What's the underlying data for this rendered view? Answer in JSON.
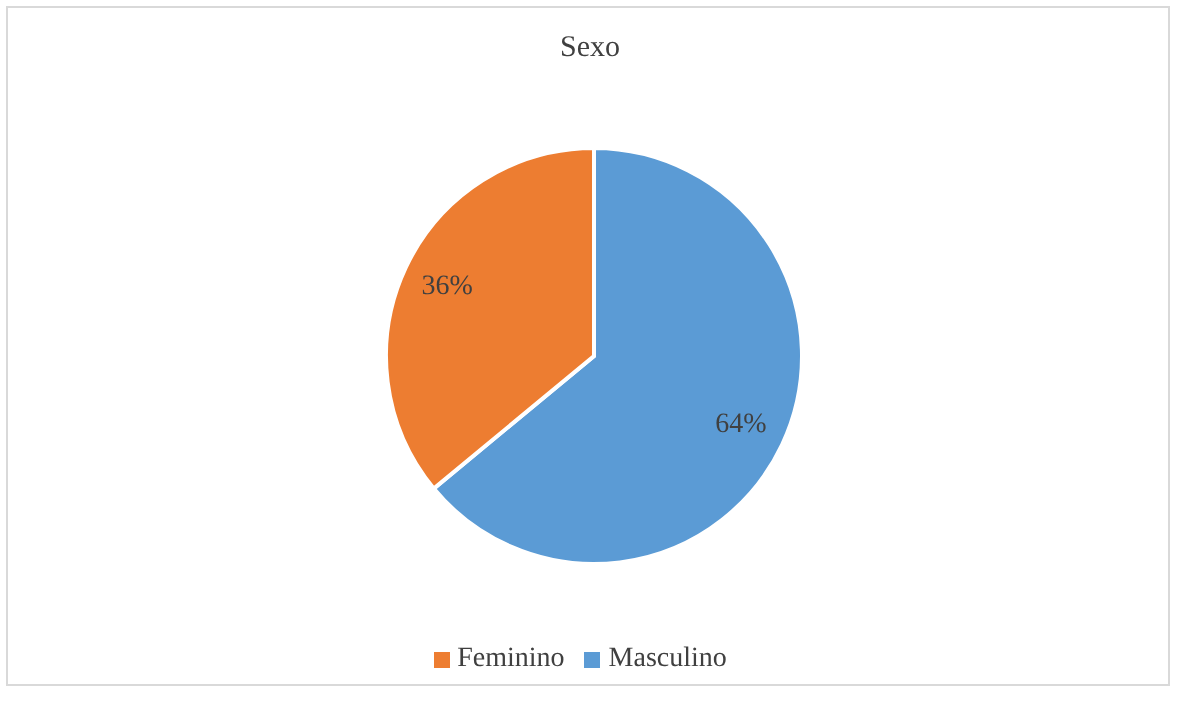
{
  "chart_data": {
    "type": "pie",
    "title": "Sexo",
    "categories": [
      "Masculino",
      "Feminino"
    ],
    "values": [
      64,
      36
    ],
    "colors": [
      "#5b9bd5",
      "#ed7d31"
    ],
    "value_labels": [
      "64%",
      "36%"
    ],
    "legend": "bottom"
  }
}
